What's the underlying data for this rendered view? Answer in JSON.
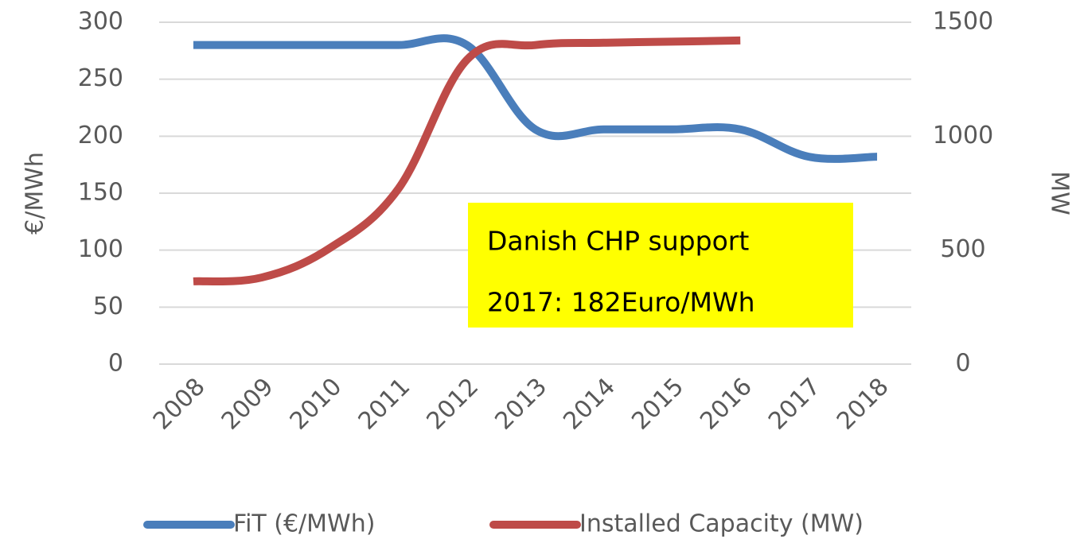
{
  "chart_data": {
    "type": "line",
    "categories": [
      "2008",
      "2009",
      "2010",
      "2011",
      "2012",
      "2013",
      "2014",
      "2015",
      "2016",
      "2017",
      "2018"
    ],
    "series": [
      {
        "name": "FiT (€/MWh)",
        "color": "#4a7ebb",
        "values": [
          280,
          280,
          280,
          280,
          280,
          206,
          206,
          206,
          206,
          182,
          182
        ]
      },
      {
        "name": "Installed Capacity (MW)",
        "color": "#be4b48",
        "axis": "y2",
        "values": [
          363,
          380,
          510,
          770,
          1335,
          1400,
          1410,
          1415,
          1420,
          null,
          null
        ]
      }
    ],
    "ylabel": "€/MWh",
    "y2label": "MW",
    "ylim": [
      0,
      300
    ],
    "yticks": [
      0,
      50,
      100,
      150,
      200,
      250,
      300
    ],
    "y2lim": [
      0,
      1500
    ],
    "y2ticks": [
      0,
      500,
      1000,
      1500
    ],
    "grid": true,
    "legend": "bottom",
    "annotation": [
      "Danish CHP support",
      "2017: 182Euro/MWh"
    ]
  }
}
